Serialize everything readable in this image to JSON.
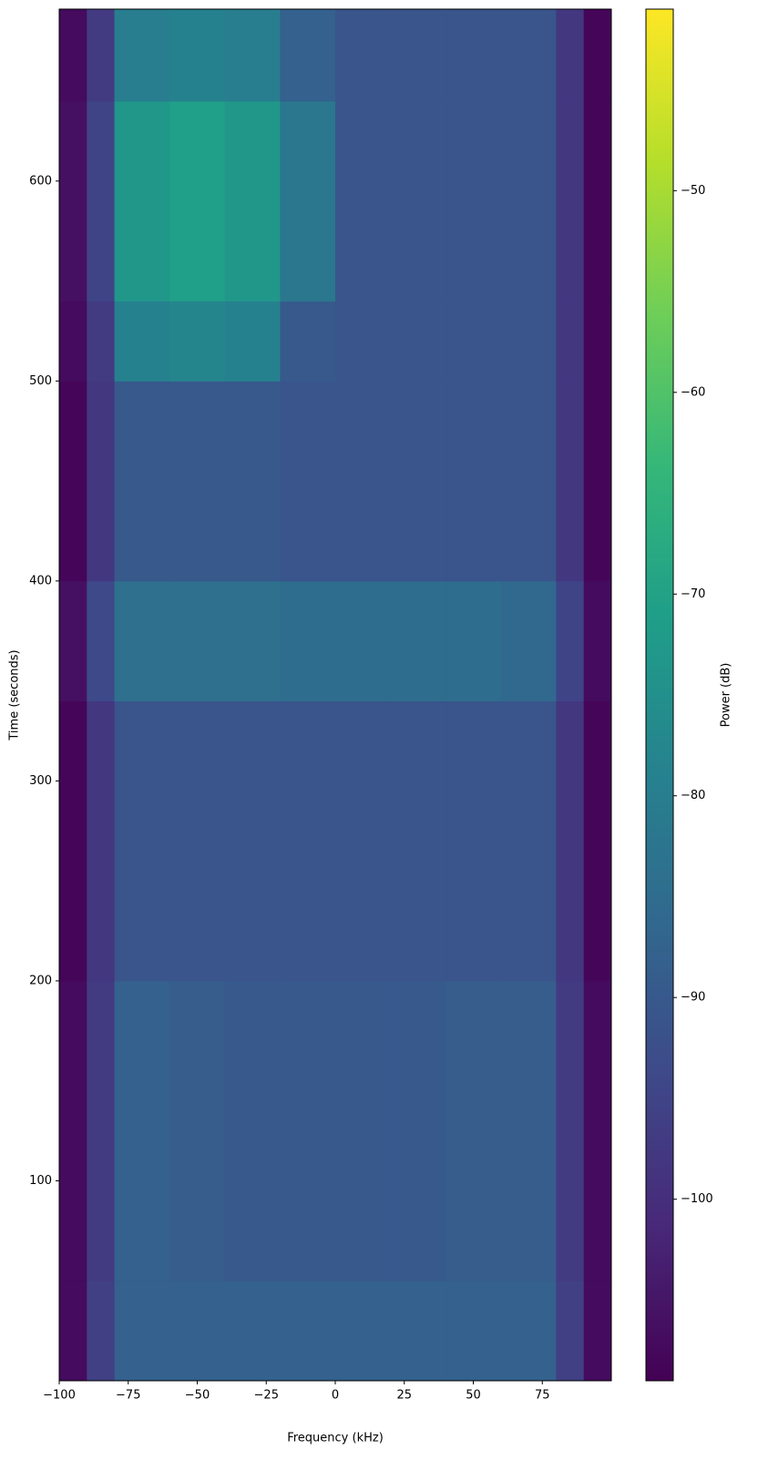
{
  "chart_data": {
    "type": "heatmap",
    "colormap": "viridis",
    "x_label": "Frequency (kHz)",
    "y_label": "Time (seconds)",
    "colorbar_label": "Power (dB)",
    "x_edges": [
      -100,
      -90,
      -80,
      -60,
      -40,
      -20,
      0,
      20,
      40,
      60,
      80,
      90,
      100
    ],
    "y_edges": [
      0,
      50,
      200,
      340,
      400,
      500,
      540,
      640,
      686
    ],
    "z": [
      [
        -107,
        -96,
        -88,
        -88,
        -88,
        -88,
        -88,
        -88,
        -88,
        -88,
        -96,
        -107
      ],
      [
        -107,
        -97,
        -88,
        -89,
        -90,
        -90,
        -90,
        -90,
        -89,
        -89,
        -97,
        -107
      ],
      [
        -108,
        -98,
        -91,
        -91,
        -91,
        -91,
        -91,
        -91,
        -91,
        -91,
        -98,
        -108
      ],
      [
        -106,
        -94,
        -84,
        -84,
        -84,
        -85,
        -85,
        -85,
        -85,
        -86,
        -95,
        -107
      ],
      [
        -108,
        -98,
        -90,
        -90,
        -90,
        -91,
        -91,
        -91,
        -91,
        -91,
        -98,
        -108
      ],
      [
        -107,
        -97,
        -79,
        -78,
        -79,
        -90,
        -91,
        -91,
        -91,
        -91,
        -98,
        -108
      ],
      [
        -106,
        -95,
        -73,
        -71,
        -73,
        -82,
        -91,
        -91,
        -91,
        -91,
        -98,
        -108
      ],
      [
        -107,
        -97,
        -80,
        -79,
        -80,
        -88,
        -91,
        -91,
        -91,
        -91,
        -98,
        -108
      ]
    ],
    "xlim": [
      -100,
      100
    ],
    "ylim": [
      0,
      686
    ],
    "zlim": [
      -109,
      -41
    ],
    "xticks": [
      {
        "value": -100,
        "label": "−100"
      },
      {
        "value": -75,
        "label": "−75"
      },
      {
        "value": -50,
        "label": "−50"
      },
      {
        "value": -25,
        "label": "−25"
      },
      0,
      25,
      50,
      75
    ],
    "yticks": [
      100,
      200,
      300,
      400,
      500,
      600
    ],
    "zticks": [
      {
        "value": -100,
        "label": "−100"
      },
      {
        "value": -90,
        "label": "−90"
      },
      {
        "value": -80,
        "label": "−80"
      },
      {
        "value": -70,
        "label": "−70"
      },
      {
        "value": -60,
        "label": "−60"
      },
      {
        "value": -50,
        "label": "−50"
      }
    ]
  }
}
